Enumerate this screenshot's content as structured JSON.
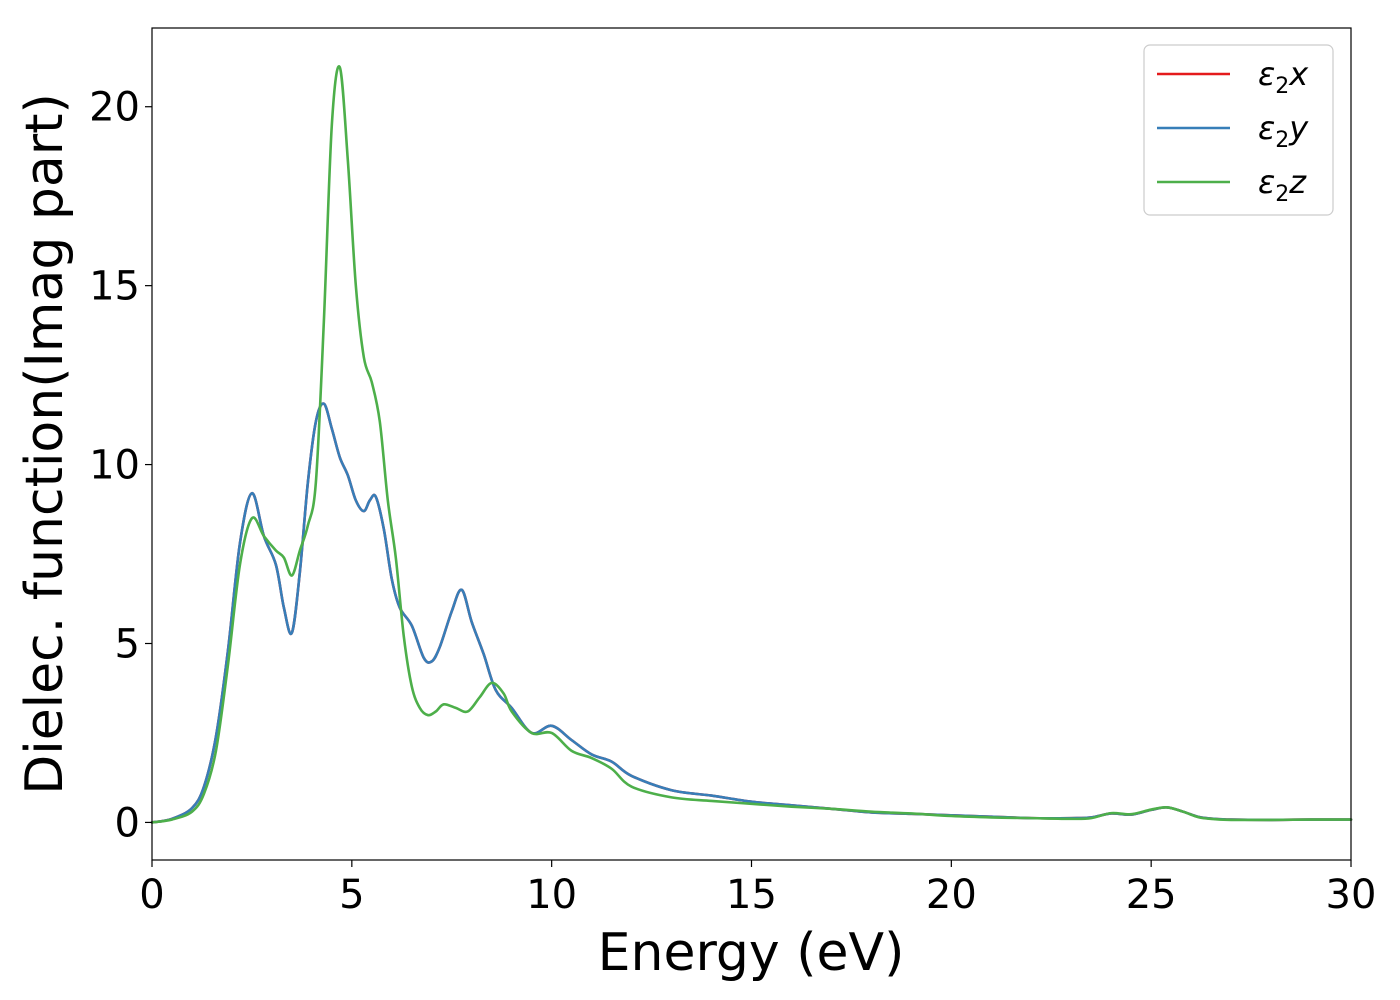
{
  "chart_data": {
    "type": "line",
    "title": "",
    "xlabel": "Energy (eV)",
    "ylabel": "Dielec. function(Imag part)",
    "xlim": [
      0,
      30
    ],
    "ylim": [
      -1.05,
      22.2
    ],
    "xticks": [
      0,
      5,
      10,
      15,
      20,
      25,
      30
    ],
    "yticks": [
      0,
      5,
      10,
      15,
      20
    ],
    "xtick_labels": [
      "0",
      "5",
      "10",
      "15",
      "20",
      "25",
      "30"
    ],
    "ytick_labels": [
      "0",
      "5",
      "10",
      "15",
      "20"
    ],
    "grid": false,
    "legend_position": "top-right",
    "series": [
      {
        "name": "ε2x",
        "symbol": "ε",
        "subscript": "2",
        "suffix": "x",
        "color": "#e41a1c",
        "x": [
          0,
          0.5,
          1.0,
          1.3,
          1.6,
          1.9,
          2.2,
          2.5,
          2.8,
          3.1,
          3.3,
          3.5,
          3.7,
          3.9,
          4.1,
          4.3,
          4.5,
          4.7,
          4.9,
          5.1,
          5.3,
          5.45,
          5.6,
          5.8,
          6.0,
          6.2,
          6.5,
          6.8,
          7.0,
          7.2,
          7.5,
          7.75,
          8.0,
          8.3,
          8.6,
          9.0,
          9.5,
          10.0,
          10.5,
          11.0,
          11.5,
          12.0,
          13.0,
          14.0,
          15.0,
          16.0,
          17.0,
          18.0,
          19.0,
          20.0,
          21.0,
          22.0,
          23.0,
          23.5,
          24.0,
          24.5,
          25.0,
          25.4,
          25.8,
          26.2,
          26.6,
          27.0,
          28.0,
          29.0,
          30.0
        ],
        "y": [
          0,
          0.1,
          0.4,
          1.0,
          2.4,
          4.8,
          7.8,
          9.2,
          8.0,
          7.2,
          6.0,
          5.3,
          7.0,
          9.5,
          11.2,
          11.7,
          11.0,
          10.2,
          9.7,
          9.0,
          8.7,
          9.0,
          9.1,
          8.2,
          6.8,
          6.0,
          5.5,
          4.6,
          4.5,
          4.9,
          5.9,
          6.5,
          5.6,
          4.7,
          3.7,
          3.2,
          2.5,
          2.7,
          2.3,
          1.9,
          1.7,
          1.3,
          0.9,
          0.75,
          0.58,
          0.48,
          0.38,
          0.28,
          0.24,
          0.2,
          0.16,
          0.12,
          0.12,
          0.14,
          0.25,
          0.22,
          0.35,
          0.42,
          0.3,
          0.15,
          0.1,
          0.08,
          0.07,
          0.08,
          0.08
        ]
      },
      {
        "name": "ε2y",
        "symbol": "ε",
        "subscript": "2",
        "suffix": "y",
        "color": "#377eb8",
        "x": [
          0,
          0.5,
          1.0,
          1.3,
          1.6,
          1.9,
          2.2,
          2.5,
          2.8,
          3.1,
          3.3,
          3.5,
          3.7,
          3.9,
          4.1,
          4.3,
          4.5,
          4.7,
          4.9,
          5.1,
          5.3,
          5.45,
          5.6,
          5.8,
          6.0,
          6.2,
          6.5,
          6.8,
          7.0,
          7.2,
          7.5,
          7.75,
          8.0,
          8.3,
          8.6,
          9.0,
          9.5,
          10.0,
          10.5,
          11.0,
          11.5,
          12.0,
          13.0,
          14.0,
          15.0,
          16.0,
          17.0,
          18.0,
          19.0,
          20.0,
          21.0,
          22.0,
          23.0,
          23.5,
          24.0,
          24.5,
          25.0,
          25.4,
          25.8,
          26.2,
          26.6,
          27.0,
          28.0,
          29.0,
          30.0
        ],
        "y": [
          0,
          0.1,
          0.4,
          1.0,
          2.4,
          4.8,
          7.8,
          9.2,
          8.0,
          7.2,
          6.0,
          5.3,
          7.0,
          9.5,
          11.2,
          11.7,
          11.0,
          10.2,
          9.7,
          9.0,
          8.7,
          9.0,
          9.1,
          8.2,
          6.8,
          6.0,
          5.5,
          4.6,
          4.5,
          4.9,
          5.9,
          6.5,
          5.6,
          4.7,
          3.7,
          3.2,
          2.5,
          2.7,
          2.3,
          1.9,
          1.7,
          1.3,
          0.9,
          0.75,
          0.58,
          0.48,
          0.38,
          0.28,
          0.24,
          0.2,
          0.16,
          0.12,
          0.12,
          0.14,
          0.25,
          0.22,
          0.35,
          0.42,
          0.3,
          0.15,
          0.1,
          0.08,
          0.07,
          0.08,
          0.08
        ]
      },
      {
        "name": "ε2z",
        "symbol": "ε",
        "subscript": "2",
        "suffix": "z",
        "color": "#4daf4a",
        "x": [
          0,
          0.5,
          1.0,
          1.3,
          1.6,
          1.9,
          2.2,
          2.5,
          2.8,
          3.1,
          3.3,
          3.5,
          3.7,
          3.9,
          4.1,
          4.3,
          4.5,
          4.7,
          4.9,
          5.1,
          5.3,
          5.5,
          5.7,
          5.9,
          6.1,
          6.3,
          6.5,
          6.7,
          6.9,
          7.1,
          7.3,
          7.6,
          7.9,
          8.2,
          8.5,
          8.8,
          9.0,
          9.5,
          10.0,
          10.5,
          11.0,
          11.5,
          12.0,
          13.0,
          14.0,
          15.0,
          16.0,
          17.0,
          18.0,
          19.0,
          20.0,
          21.0,
          22.0,
          23.0,
          23.5,
          24.0,
          24.5,
          25.0,
          25.4,
          25.8,
          26.2,
          26.6,
          27.0,
          28.0,
          29.0,
          30.0
        ],
        "y": [
          0,
          0.08,
          0.3,
          0.8,
          2.0,
          4.4,
          7.2,
          8.5,
          8.0,
          7.6,
          7.4,
          6.9,
          7.6,
          8.3,
          9.5,
          14.0,
          19.5,
          21.1,
          18.5,
          15.0,
          13.0,
          12.3,
          11.2,
          9.0,
          7.4,
          5.2,
          3.8,
          3.2,
          3.0,
          3.1,
          3.3,
          3.2,
          3.1,
          3.5,
          3.9,
          3.6,
          3.1,
          2.5,
          2.5,
          2.0,
          1.8,
          1.5,
          1.0,
          0.7,
          0.6,
          0.52,
          0.44,
          0.38,
          0.3,
          0.25,
          0.18,
          0.14,
          0.12,
          0.1,
          0.12,
          0.26,
          0.23,
          0.36,
          0.42,
          0.3,
          0.14,
          0.09,
          0.07,
          0.07,
          0.08,
          0.08
        ]
      }
    ]
  }
}
